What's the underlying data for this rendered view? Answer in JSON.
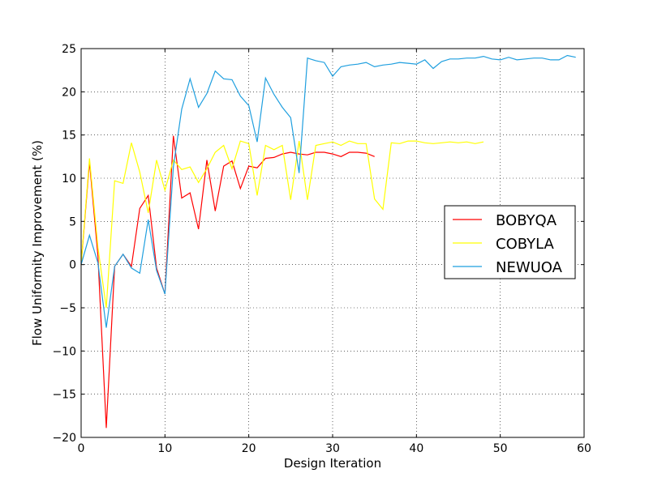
{
  "chart_data": {
    "type": "line",
    "title": "",
    "xlabel": "Design Iteration",
    "ylabel": "Flow Uniformity Improvement (%)",
    "xlim": [
      0,
      60
    ],
    "ylim": [
      -20,
      25
    ],
    "xticks": [
      0,
      10,
      20,
      30,
      40,
      50,
      60
    ],
    "yticks": [
      -20,
      -15,
      -10,
      -5,
      0,
      5,
      10,
      15,
      20,
      25
    ],
    "grid": "dotted",
    "legend_position": "right",
    "series": [
      {
        "name": "BOBYQA",
        "color": "#ff0000",
        "x": [
          0,
          1,
          2,
          3,
          4,
          5,
          6,
          7,
          8,
          9,
          10,
          11,
          12,
          13,
          14,
          15,
          16,
          17,
          18,
          19,
          20,
          21,
          22,
          23,
          24,
          25,
          26,
          27,
          28,
          29,
          30,
          31,
          32,
          33,
          34,
          35
        ],
        "y": [
          0,
          11.9,
          1.0,
          -18.9,
          -0.2,
          1.2,
          -0.2,
          6.5,
          8.0,
          -0.4,
          -3.4,
          14.9,
          7.7,
          8.3,
          4.1,
          12.1,
          6.2,
          11.4,
          12.0,
          8.8,
          11.4,
          11.2,
          12.3,
          12.4,
          12.8,
          13.0,
          12.8,
          12.7,
          13.0,
          13.0,
          12.8,
          12.5,
          13.0,
          13.0,
          12.9,
          12.5
        ]
      },
      {
        "name": "COBYLA",
        "color": "#ffff00",
        "x": [
          0,
          1,
          2,
          3,
          4,
          5,
          6,
          7,
          8,
          9,
          10,
          11,
          12,
          13,
          14,
          15,
          16,
          17,
          18,
          19,
          20,
          21,
          22,
          23,
          24,
          25,
          26,
          27,
          28,
          29,
          30,
          31,
          32,
          33,
          34,
          35,
          36,
          37,
          38,
          39,
          40,
          41,
          42,
          43,
          44,
          45,
          46,
          47,
          48
        ],
        "y": [
          0,
          12.3,
          2.0,
          -5.0,
          9.7,
          9.4,
          14.1,
          10.7,
          6.0,
          12.1,
          8.6,
          12.1,
          11.0,
          11.3,
          9.5,
          11.1,
          13.0,
          13.8,
          11.1,
          14.3,
          14.0,
          8.0,
          13.8,
          13.3,
          13.8,
          7.5,
          14.3,
          7.5,
          13.8,
          14.0,
          14.2,
          13.8,
          14.3,
          14.0,
          14.0,
          7.6,
          6.4,
          14.1,
          14.0,
          14.3,
          14.3,
          14.1,
          14.0,
          14.1,
          14.2,
          14.1,
          14.2,
          14.0,
          14.2
        ]
      },
      {
        "name": "NEWUOA",
        "color": "#1f9fdf",
        "x": [
          0,
          1,
          2,
          3,
          4,
          5,
          6,
          7,
          8,
          9,
          10,
          11,
          12,
          13,
          14,
          15,
          16,
          17,
          18,
          19,
          20,
          21,
          22,
          23,
          24,
          25,
          26,
          27,
          28,
          29,
          30,
          31,
          32,
          33,
          34,
          35,
          36,
          37,
          38,
          39,
          40,
          41,
          42,
          43,
          44,
          45,
          46,
          47,
          48,
          49,
          50,
          51,
          52,
          53,
          54,
          55,
          56,
          57,
          58,
          59
        ],
        "y": [
          0,
          3.4,
          0.2,
          -7.3,
          -0.2,
          1.2,
          -0.4,
          -1.0,
          5.2,
          -0.7,
          -3.4,
          11.3,
          18.0,
          21.5,
          18.2,
          19.8,
          22.4,
          21.5,
          21.4,
          19.5,
          18.4,
          14.2,
          21.6,
          19.7,
          18.2,
          17.0,
          10.6,
          23.9,
          23.6,
          23.4,
          21.8,
          22.9,
          23.1,
          23.2,
          23.4,
          22.9,
          23.1,
          23.2,
          23.4,
          23.3,
          23.2,
          23.7,
          22.7,
          23.5,
          23.8,
          23.8,
          23.9,
          23.9,
          24.1,
          23.8,
          23.7,
          24.0,
          23.7,
          23.8,
          23.9,
          23.9,
          23.7,
          23.7,
          24.2,
          24.0
        ]
      }
    ]
  }
}
